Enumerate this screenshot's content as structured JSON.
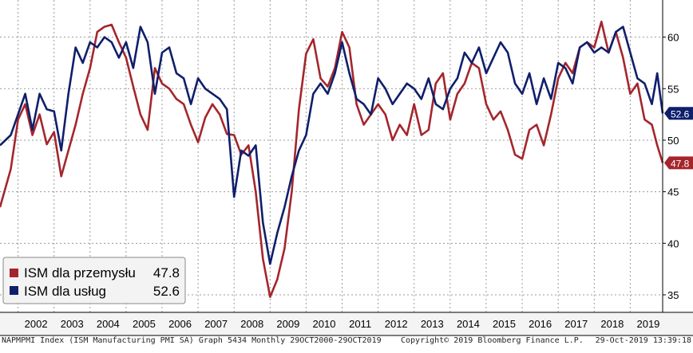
{
  "chart_data": {
    "type": "line",
    "title": "",
    "xlabel": "",
    "ylabel": "",
    "ylim": [
      33.3,
      63.6
    ],
    "xlim": [
      2001.5,
      2019.9
    ],
    "y_ticks": [
      "35",
      "40",
      "45",
      "50",
      "55",
      "60"
    ],
    "y_tick_values": [
      35,
      40,
      45,
      50,
      55,
      60
    ],
    "x_ticks": [
      "2002",
      "2003",
      "2004",
      "2005",
      "2006",
      "2007",
      "2008",
      "2009",
      "2010",
      "2011",
      "2012",
      "2013",
      "2014",
      "2015",
      "2016",
      "2017",
      "2018",
      "2019"
    ],
    "grid": true,
    "legend_position": "bottom-left",
    "series": [
      {
        "name": "ISM dla przemysłu",
        "last_value": "47.8",
        "color": "#a4262c",
        "points": [
          [
            2001.5,
            43.5
          ],
          [
            2001.8,
            47.2
          ],
          [
            2002.0,
            52.0
          ],
          [
            2002.2,
            53.5
          ],
          [
            2002.4,
            50.5
          ],
          [
            2002.6,
            52.5
          ],
          [
            2002.8,
            49.6
          ],
          [
            2003.0,
            50.8
          ],
          [
            2003.2,
            46.5
          ],
          [
            2003.4,
            49.0
          ],
          [
            2003.6,
            51.5
          ],
          [
            2003.8,
            54.5
          ],
          [
            2004.0,
            57.0
          ],
          [
            2004.2,
            60.5
          ],
          [
            2004.4,
            61.0
          ],
          [
            2004.6,
            61.2
          ],
          [
            2004.8,
            59.5
          ],
          [
            2005.0,
            58.0
          ],
          [
            2005.2,
            55.2
          ],
          [
            2005.4,
            52.5
          ],
          [
            2005.6,
            51.0
          ],
          [
            2005.8,
            57.0
          ],
          [
            2006.0,
            55.5
          ],
          [
            2006.2,
            55.0
          ],
          [
            2006.4,
            54.0
          ],
          [
            2006.6,
            53.5
          ],
          [
            2006.8,
            51.5
          ],
          [
            2007.0,
            49.8
          ],
          [
            2007.2,
            52.2
          ],
          [
            2007.4,
            53.5
          ],
          [
            2007.6,
            52.5
          ],
          [
            2007.8,
            50.6
          ],
          [
            2008.0,
            50.5
          ],
          [
            2008.2,
            48.6
          ],
          [
            2008.4,
            49.5
          ],
          [
            2008.6,
            45.0
          ],
          [
            2008.8,
            38.5
          ],
          [
            2009.0,
            34.8
          ],
          [
            2009.2,
            36.5
          ],
          [
            2009.4,
            39.5
          ],
          [
            2009.6,
            45.0
          ],
          [
            2009.8,
            53.0
          ],
          [
            2010.0,
            58.4
          ],
          [
            2010.2,
            59.8
          ],
          [
            2010.4,
            56.0
          ],
          [
            2010.6,
            55.2
          ],
          [
            2010.8,
            57.0
          ],
          [
            2011.0,
            60.5
          ],
          [
            2011.2,
            59.0
          ],
          [
            2011.4,
            53.5
          ],
          [
            2011.6,
            51.5
          ],
          [
            2011.8,
            52.5
          ],
          [
            2012.0,
            53.5
          ],
          [
            2012.2,
            52.5
          ],
          [
            2012.4,
            50.0
          ],
          [
            2012.6,
            51.5
          ],
          [
            2012.8,
            50.5
          ],
          [
            2013.0,
            53.5
          ],
          [
            2013.2,
            50.5
          ],
          [
            2013.4,
            51.0
          ],
          [
            2013.6,
            55.5
          ],
          [
            2013.8,
            56.5
          ],
          [
            2014.0,
            52.0
          ],
          [
            2014.2,
            54.5
          ],
          [
            2014.4,
            55.5
          ],
          [
            2014.6,
            57.5
          ],
          [
            2014.8,
            57.0
          ],
          [
            2015.0,
            53.5
          ],
          [
            2015.2,
            52.0
          ],
          [
            2015.4,
            52.8
          ],
          [
            2015.6,
            51.0
          ],
          [
            2015.8,
            48.6
          ],
          [
            2016.0,
            48.2
          ],
          [
            2016.2,
            51.0
          ],
          [
            2016.4,
            51.5
          ],
          [
            2016.6,
            49.5
          ],
          [
            2016.8,
            52.5
          ],
          [
            2017.0,
            56.0
          ],
          [
            2017.2,
            57.5
          ],
          [
            2017.4,
            56.5
          ],
          [
            2017.6,
            59.0
          ],
          [
            2017.8,
            59.5
          ],
          [
            2018.0,
            59.0
          ],
          [
            2018.2,
            61.5
          ],
          [
            2018.4,
            58.5
          ],
          [
            2018.6,
            60.5
          ],
          [
            2018.8,
            58.0
          ],
          [
            2019.0,
            54.5
          ],
          [
            2019.2,
            55.5
          ],
          [
            2019.4,
            52.0
          ],
          [
            2019.6,
            51.5
          ],
          [
            2019.75,
            49.5
          ],
          [
            2019.9,
            47.8
          ]
        ]
      },
      {
        "name": "ISM dla usług",
        "last_value": "52.6",
        "color": "#0f1f6b",
        "points": [
          [
            2001.5,
            49.5
          ],
          [
            2001.8,
            50.5
          ],
          [
            2002.0,
            52.5
          ],
          [
            2002.2,
            54.5
          ],
          [
            2002.4,
            51.0
          ],
          [
            2002.6,
            54.5
          ],
          [
            2002.8,
            53.0
          ],
          [
            2003.0,
            52.8
          ],
          [
            2003.2,
            49.0
          ],
          [
            2003.4,
            54.5
          ],
          [
            2003.6,
            59.0
          ],
          [
            2003.8,
            57.5
          ],
          [
            2004.0,
            59.5
          ],
          [
            2004.2,
            59.0
          ],
          [
            2004.4,
            60.0
          ],
          [
            2004.6,
            59.5
          ],
          [
            2004.8,
            58.0
          ],
          [
            2005.0,
            59.5
          ],
          [
            2005.2,
            57.0
          ],
          [
            2005.4,
            61.0
          ],
          [
            2005.6,
            59.5
          ],
          [
            2005.8,
            54.5
          ],
          [
            2006.0,
            58.5
          ],
          [
            2006.2,
            59.0
          ],
          [
            2006.4,
            56.5
          ],
          [
            2006.6,
            56.0
          ],
          [
            2006.8,
            53.5
          ],
          [
            2007.0,
            56.0
          ],
          [
            2007.2,
            55.0
          ],
          [
            2007.4,
            54.5
          ],
          [
            2007.6,
            54.0
          ],
          [
            2007.8,
            53.0
          ],
          [
            2008.0,
            44.5
          ],
          [
            2008.2,
            49.0
          ],
          [
            2008.4,
            48.5
          ],
          [
            2008.6,
            49.5
          ],
          [
            2008.8,
            42.0
          ],
          [
            2009.0,
            38.0
          ],
          [
            2009.2,
            41.0
          ],
          [
            2009.4,
            43.5
          ],
          [
            2009.6,
            46.5
          ],
          [
            2009.8,
            49.0
          ],
          [
            2010.0,
            50.5
          ],
          [
            2010.2,
            54.5
          ],
          [
            2010.4,
            55.5
          ],
          [
            2010.6,
            54.5
          ],
          [
            2010.8,
            56.5
          ],
          [
            2011.0,
            59.5
          ],
          [
            2011.2,
            56.5
          ],
          [
            2011.4,
            54.0
          ],
          [
            2011.6,
            53.5
          ],
          [
            2011.8,
            52.5
          ],
          [
            2012.0,
            56.0
          ],
          [
            2012.2,
            55.0
          ],
          [
            2012.4,
            53.5
          ],
          [
            2012.6,
            54.5
          ],
          [
            2012.8,
            55.5
          ],
          [
            2013.0,
            55.0
          ],
          [
            2013.2,
            54.0
          ],
          [
            2013.4,
            56.0
          ],
          [
            2013.6,
            53.5
          ],
          [
            2013.8,
            53.0
          ],
          [
            2014.0,
            55.0
          ],
          [
            2014.2,
            56.0
          ],
          [
            2014.4,
            58.5
          ],
          [
            2014.6,
            57.5
          ],
          [
            2014.8,
            59.0
          ],
          [
            2015.0,
            56.5
          ],
          [
            2015.2,
            58.0
          ],
          [
            2015.4,
            59.5
          ],
          [
            2015.6,
            58.5
          ],
          [
            2015.8,
            55.5
          ],
          [
            2016.0,
            54.5
          ],
          [
            2016.2,
            56.5
          ],
          [
            2016.4,
            53.5
          ],
          [
            2016.6,
            56.0
          ],
          [
            2016.8,
            54.0
          ],
          [
            2017.0,
            57.5
          ],
          [
            2017.2,
            57.0
          ],
          [
            2017.4,
            55.5
          ],
          [
            2017.6,
            59.0
          ],
          [
            2017.8,
            59.5
          ],
          [
            2018.0,
            58.5
          ],
          [
            2018.2,
            59.0
          ],
          [
            2018.4,
            58.5
          ],
          [
            2018.6,
            60.5
          ],
          [
            2018.8,
            61.0
          ],
          [
            2019.0,
            58.5
          ],
          [
            2019.2,
            56.0
          ],
          [
            2019.4,
            55.5
          ],
          [
            2019.6,
            53.5
          ],
          [
            2019.75,
            56.5
          ],
          [
            2019.9,
            52.6
          ]
        ]
      }
    ]
  },
  "footer": {
    "left": "NAPMPMI Index (ISM Manufacturing PMI SA) Graph 5434  Monthly 29OCT2000-29OCT2019",
    "center": "Copyright© 2019 Bloomberg Finance L.P.",
    "right": "29-Oct-2019 13:39:18"
  }
}
